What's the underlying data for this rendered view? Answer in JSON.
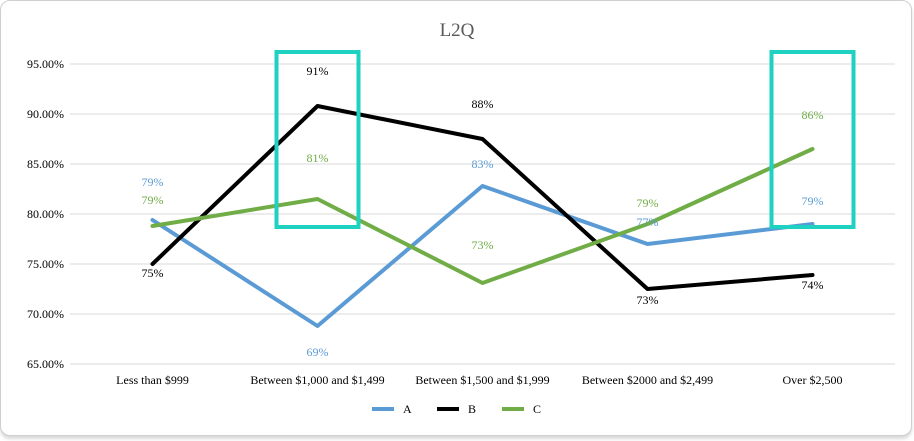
{
  "chart_data": {
    "type": "line",
    "title": "L2Q",
    "xlabel": "",
    "ylabel": "",
    "categories": [
      "Less than $999",
      "Between $1,000 and $1,499",
      "Between $1,500 and $1,999",
      "Between $2000 and $2,499",
      "Over $2,500"
    ],
    "ylim": [
      0.65,
      0.95
    ],
    "yticks": [
      "95.00%",
      "90.00%",
      "85.00%",
      "80.00%",
      "75.00%",
      "70.00%",
      "65.00%"
    ],
    "grid": true,
    "legend_position": "bottom",
    "series": [
      {
        "name": "A",
        "color": "#5b9bd5",
        "values": [
          0.794,
          0.688,
          0.828,
          0.77,
          0.79
        ],
        "labels": [
          "79%",
          "69%",
          "83%",
          "77%",
          "79%"
        ]
      },
      {
        "name": "B",
        "color": "#000000",
        "values": [
          0.75,
          0.908,
          0.875,
          0.725,
          0.739
        ],
        "labels": [
          "75%",
          "91%",
          "88%",
          "73%",
          "74%"
        ]
      },
      {
        "name": "C",
        "color": "#70ad47",
        "values": [
          0.788,
          0.815,
          0.731,
          0.79,
          0.865
        ],
        "labels": [
          "79%",
          "81%",
          "73%",
          "79%",
          "86%"
        ]
      }
    ],
    "highlights": [
      {
        "category_index": 1,
        "color": "#1fd1c1"
      },
      {
        "category_index": 4,
        "color": "#1fd1c1"
      }
    ]
  }
}
